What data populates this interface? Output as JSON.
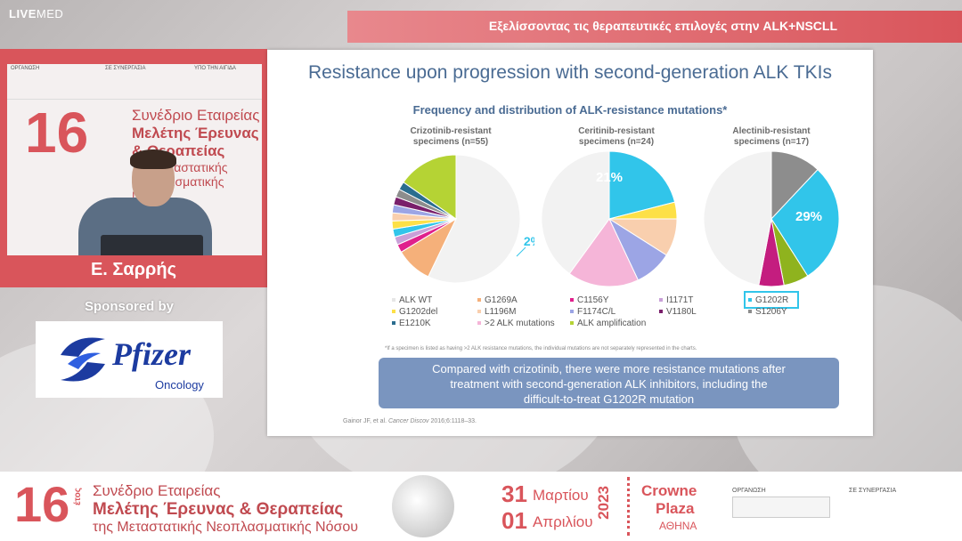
{
  "app": {
    "brand_live": "LIVE",
    "brand_med": "MED",
    "title": "Εξελίσσοντας τις θεραπευτικές επιλογές στην ALK+NSCLL"
  },
  "speaker": {
    "name": "Ε. Σαρρής",
    "backdrop_number": "16",
    "backdrop_line1": "Συνέδριο Εταιρείας",
    "backdrop_line2": "Μελέτης Έρευνας",
    "backdrop_line3": "& Θεραπείας",
    "backdrop_line4": "της Μεταστατικής",
    "backdrop_line5": "Νεοπλασματικής Νόσου",
    "header_org": "ΟΡΓΑΝΩΣΗ",
    "header_syn": "ΣΕ ΣΥΝΕΡΓΑΣΙΑ",
    "header_under": "ΥΠΟ ΤΗΝ ΑΙΓΙΔΑ"
  },
  "sponsor": {
    "label": "Sponsored by",
    "name": "Pfizer",
    "division": "Oncology"
  },
  "slide": {
    "title": "Resistance upon progression with second-generation ALK TKIs",
    "subtitle": "Frequency and distribution of ALK-resistance mutations*",
    "pies": [
      {
        "label_line1": "Crizotinib-resistant",
        "label_line2": "specimens (n=55)",
        "callout": "2%",
        "slices": [
          {
            "name": "ALK WT",
            "value": 56,
            "color": "#f2f2f2"
          },
          {
            "name": "G1269A",
            "value": 9,
            "color": "#f5b07a"
          },
          {
            "name": "C1156Y",
            "value": 2,
            "color": "#e0208c"
          },
          {
            "name": "I1171T",
            "value": 2,
            "color": "#c9a0d8"
          },
          {
            "name": "G1202R",
            "value": 2,
            "color": "#31c5ea"
          },
          {
            "name": "G1202del",
            "value": 2,
            "color": "#fde047"
          },
          {
            "name": "L1196M",
            "value": 2,
            "color": "#f9cfae"
          },
          {
            "name": "F1174C/L",
            "value": 2,
            "color": "#9ca5e5"
          },
          {
            "name": "V1180L",
            "value": 2,
            "color": "#7a1f6b"
          },
          {
            "name": "S1206Y",
            "value": 2,
            "color": "#8d8d8d"
          },
          {
            "name": "E1210K",
            "value": 2,
            "color": "#2a6d8f"
          },
          {
            "name": "ALK amplification",
            "value": 15,
            "color": "#b5d334"
          }
        ]
      },
      {
        "label_line1": "Ceritinib-resistant",
        "label_line2": "specimens (n=24)",
        "callout": "21%",
        "slices": [
          {
            "name": "G1202R",
            "value": 21,
            "color": "#31c5ea"
          },
          {
            "name": "G1202del",
            "value": 4,
            "color": "#fde047"
          },
          {
            "name": "L1196M",
            "value": 9,
            "color": "#f9cfae"
          },
          {
            "name": "F1174C/L",
            "value": 9,
            "color": "#9ca5e5"
          },
          {
            "name": ">2 ALK mutations",
            "value": 17,
            "color": "#f5b5d8"
          },
          {
            "name": "ALK WT",
            "value": 40,
            "color": "#f2f2f2"
          }
        ]
      },
      {
        "label_line1": "Alectinib-resistant",
        "label_line2": "specimens (n=17)",
        "callout": "29%",
        "slices": [
          {
            "name": "S1206Y",
            "value": 12,
            "color": "#8d8d8d"
          },
          {
            "name": "G1202R",
            "value": 29,
            "color": "#31c5ea"
          },
          {
            "name": "ALK amplification",
            "value": 6,
            "color": "#8fb31e"
          },
          {
            "name": "C1156Y",
            "value": 6,
            "color": "#c41d7f"
          },
          {
            "name": "ALK WT",
            "value": 47,
            "color": "#f2f2f2"
          }
        ]
      }
    ],
    "legend": [
      {
        "label": "ALK WT",
        "color": "#e6e6e6"
      },
      {
        "label": "G1269A",
        "color": "#f5b07a"
      },
      {
        "label": "C1156Y",
        "color": "#e0208c"
      },
      {
        "label": "I1171T",
        "color": "#c9a0d8"
      },
      {
        "label": "G1202R",
        "color": "#31c5ea"
      },
      {
        "label": "G1202del",
        "color": "#fde047"
      },
      {
        "label": "L1196M",
        "color": "#f9cfae"
      },
      {
        "label": "F1174C/L",
        "color": "#9ca5e5"
      },
      {
        "label": "V1180L",
        "color": "#7a1f6b"
      },
      {
        "label": "S1206Y",
        "color": "#8d8d8d"
      },
      {
        "label": "E1210K",
        "color": "#2a6d8f"
      },
      {
        "label": ">2 ALK mutations",
        "color": "#f5b5d8"
      },
      {
        "label": "ALK amplification",
        "color": "#b5d334"
      }
    ],
    "footnote": "*If a specimen is listed as having >2 ALK resistance mutations, the individual mutations are not separately represented in the charts.",
    "callout_line1": "Compared with crizotinib, there were more resistance mutations after",
    "callout_line2": "treatment with second-generation ALK inhibitors, including the",
    "callout_line3": "difficult-to-treat G1202R mutation",
    "reference_authors": "Gainor JF, et al.",
    "reference_journal": "Cancer Discov",
    "reference_detail": "2016;6:1118–33."
  },
  "banner": {
    "number": "16",
    "etos": "έτος",
    "line1": "Συνέδριο Εταιρείας",
    "line2": "Μελέτης Έρευνας & Θεραπείας",
    "line3": "της Μεταστατικής Νεοπλασματικής Νόσου",
    "day1": "31",
    "month1": "Μαρτίου",
    "day2": "01",
    "month2": "Απριλίου",
    "year": "2023",
    "venue1": "Crowne",
    "venue2": "Plaza",
    "venue3": "ΑΘΗΝΑ",
    "org_label": "ΟΡΓΑΝΩΣΗ",
    "syn_label": "ΣΕ ΣΥΝΕΡΓΑΣΙΑ"
  },
  "chart_data": [
    {
      "type": "pie",
      "title": "Crizotinib-resistant specimens (n=55)",
      "labels": [
        "ALK WT",
        "G1269A",
        "C1156Y",
        "I1171T",
        "G1202R",
        "G1202del",
        "L1196M",
        "F1174C/L",
        "V1180L",
        "S1206Y",
        "E1210K",
        "ALK amplification"
      ],
      "values": [
        56,
        9,
        2,
        2,
        2,
        2,
        2,
        2,
        2,
        2,
        2,
        15
      ],
      "annotations": [
        "2%"
      ]
    },
    {
      "type": "pie",
      "title": "Ceritinib-resistant specimens (n=24)",
      "labels": [
        "G1202R",
        "G1202del",
        "L1196M",
        "F1174C/L",
        ">2 ALK mutations",
        "ALK WT"
      ],
      "values": [
        21,
        4,
        9,
        9,
        17,
        40
      ],
      "annotations": [
        "21%"
      ]
    },
    {
      "type": "pie",
      "title": "Alectinib-resistant specimens (n=17)",
      "labels": [
        "S1206Y",
        "G1202R",
        "ALK amplification",
        "C1156Y",
        "ALK WT"
      ],
      "values": [
        12,
        29,
        6,
        6,
        47
      ],
      "annotations": [
        "29%"
      ]
    }
  ]
}
